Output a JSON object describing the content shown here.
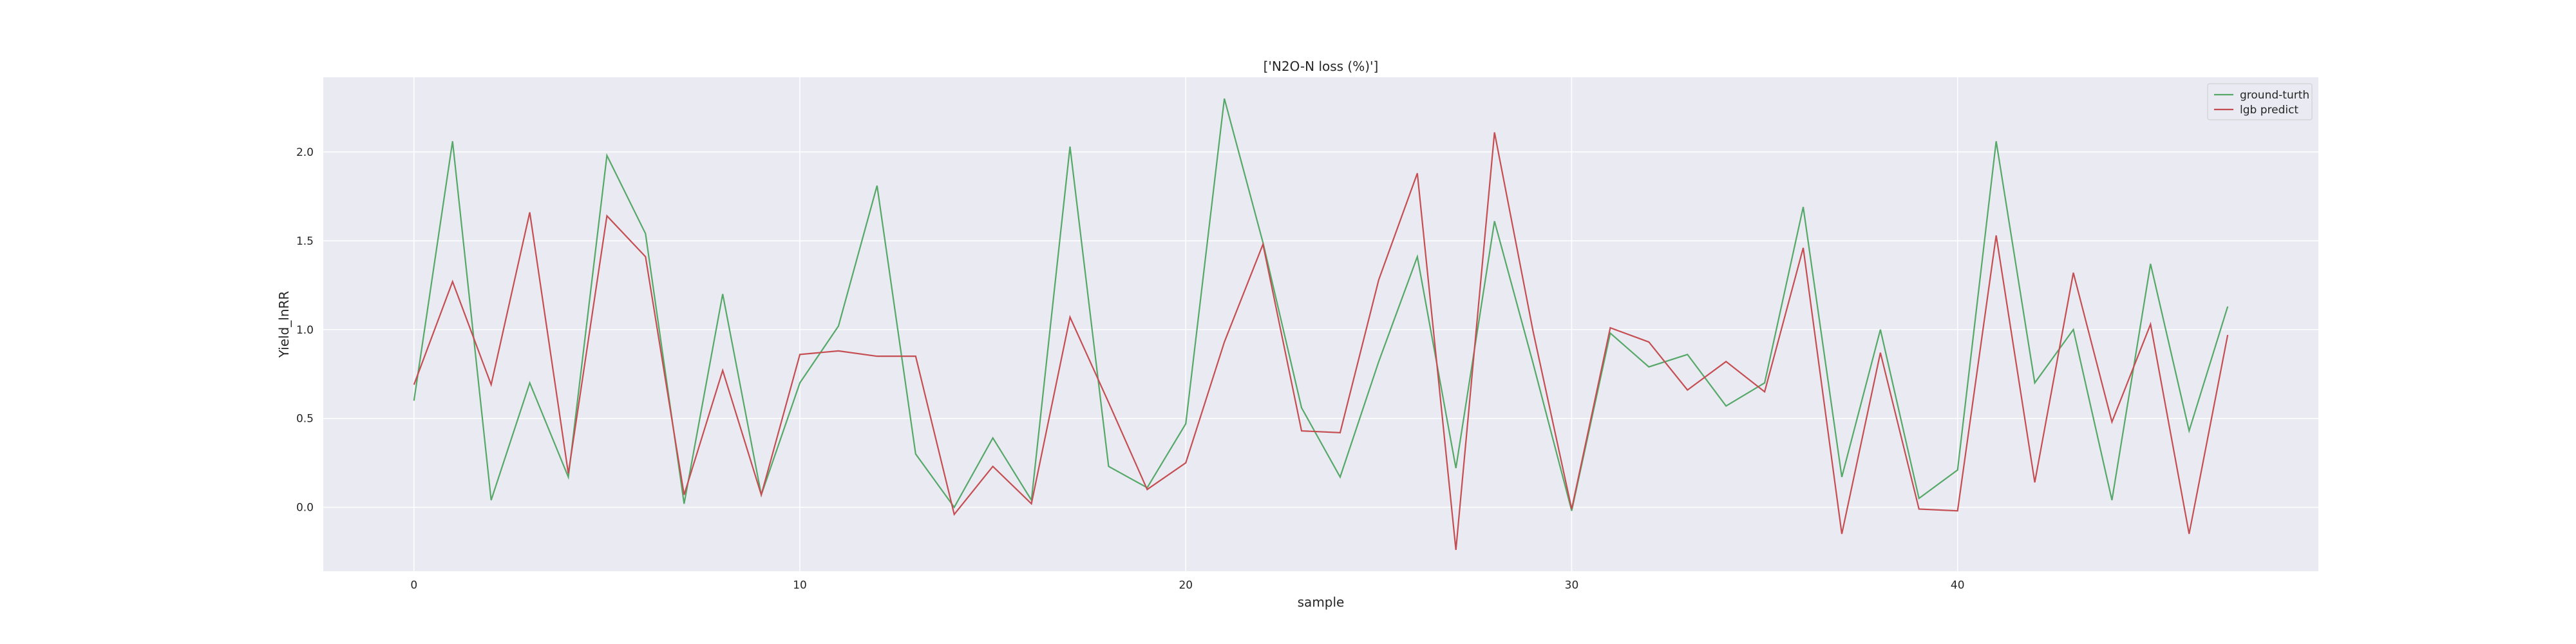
{
  "chart_data": {
    "type": "line",
    "title": "['N2O-N loss (%)']",
    "xlabel": "sample",
    "ylabel": "Yield_lnRR",
    "xlim": [
      -2.35,
      49.35
    ],
    "ylim": [
      -0.36,
      2.42
    ],
    "x_ticks": [
      0,
      10,
      20,
      30,
      40
    ],
    "y_ticks": [
      0.0,
      0.5,
      1.0,
      1.5,
      2.0
    ],
    "x_tick_labels": [
      "0",
      "10",
      "20",
      "30",
      "40"
    ],
    "y_tick_labels": [
      "0.0",
      "0.5",
      "1.0",
      "1.5",
      "2.0"
    ],
    "grid": true,
    "legend_position": "top-right",
    "background_color": "#eaeaf2",
    "grid_color": "#ffffff",
    "x": [
      0,
      1,
      2,
      3,
      4,
      5,
      6,
      7,
      8,
      9,
      10,
      11,
      12,
      13,
      14,
      15,
      16,
      17,
      18,
      19,
      20,
      21,
      22,
      23,
      24,
      25,
      26,
      27,
      28,
      29,
      30,
      31,
      32,
      33,
      34,
      35,
      36,
      37,
      38,
      39,
      40,
      41,
      42,
      43,
      44,
      45,
      46,
      47
    ],
    "series": [
      {
        "name": "ground-turth",
        "color": "#55a868",
        "values": [
          0.6,
          2.06,
          0.04,
          0.7,
          0.17,
          1.98,
          1.54,
          0.02,
          1.2,
          0.07,
          0.7,
          1.02,
          1.81,
          0.3,
          0.0,
          0.39,
          0.04,
          2.03,
          0.23,
          0.11,
          0.47,
          2.3,
          1.49,
          0.56,
          0.17,
          0.82,
          1.41,
          0.22,
          1.61,
          0.81,
          -0.02,
          0.98,
          0.79,
          0.86,
          0.57,
          0.7,
          1.69,
          0.17,
          1.0,
          0.05,
          0.21,
          2.06,
          0.7,
          1.0,
          0.04,
          1.37,
          0.43,
          1.13
        ]
      },
      {
        "name": "lgb predict",
        "color": "#c44e52",
        "values": [
          0.69,
          1.27,
          0.69,
          1.66,
          0.19,
          1.64,
          1.41,
          0.07,
          0.77,
          0.07,
          0.86,
          0.88,
          0.85,
          0.85,
          -0.04,
          0.23,
          0.02,
          1.07,
          0.59,
          0.1,
          0.25,
          0.93,
          1.48,
          0.43,
          0.42,
          1.28,
          1.88,
          -0.24,
          2.11,
          0.99,
          -0.01,
          1.01,
          0.93,
          0.66,
          0.82,
          0.65,
          1.46,
          -0.15,
          0.87,
          -0.01,
          -0.02,
          1.53,
          0.14,
          1.32,
          0.48,
          1.03,
          -0.15,
          0.97
        ]
      }
    ]
  }
}
